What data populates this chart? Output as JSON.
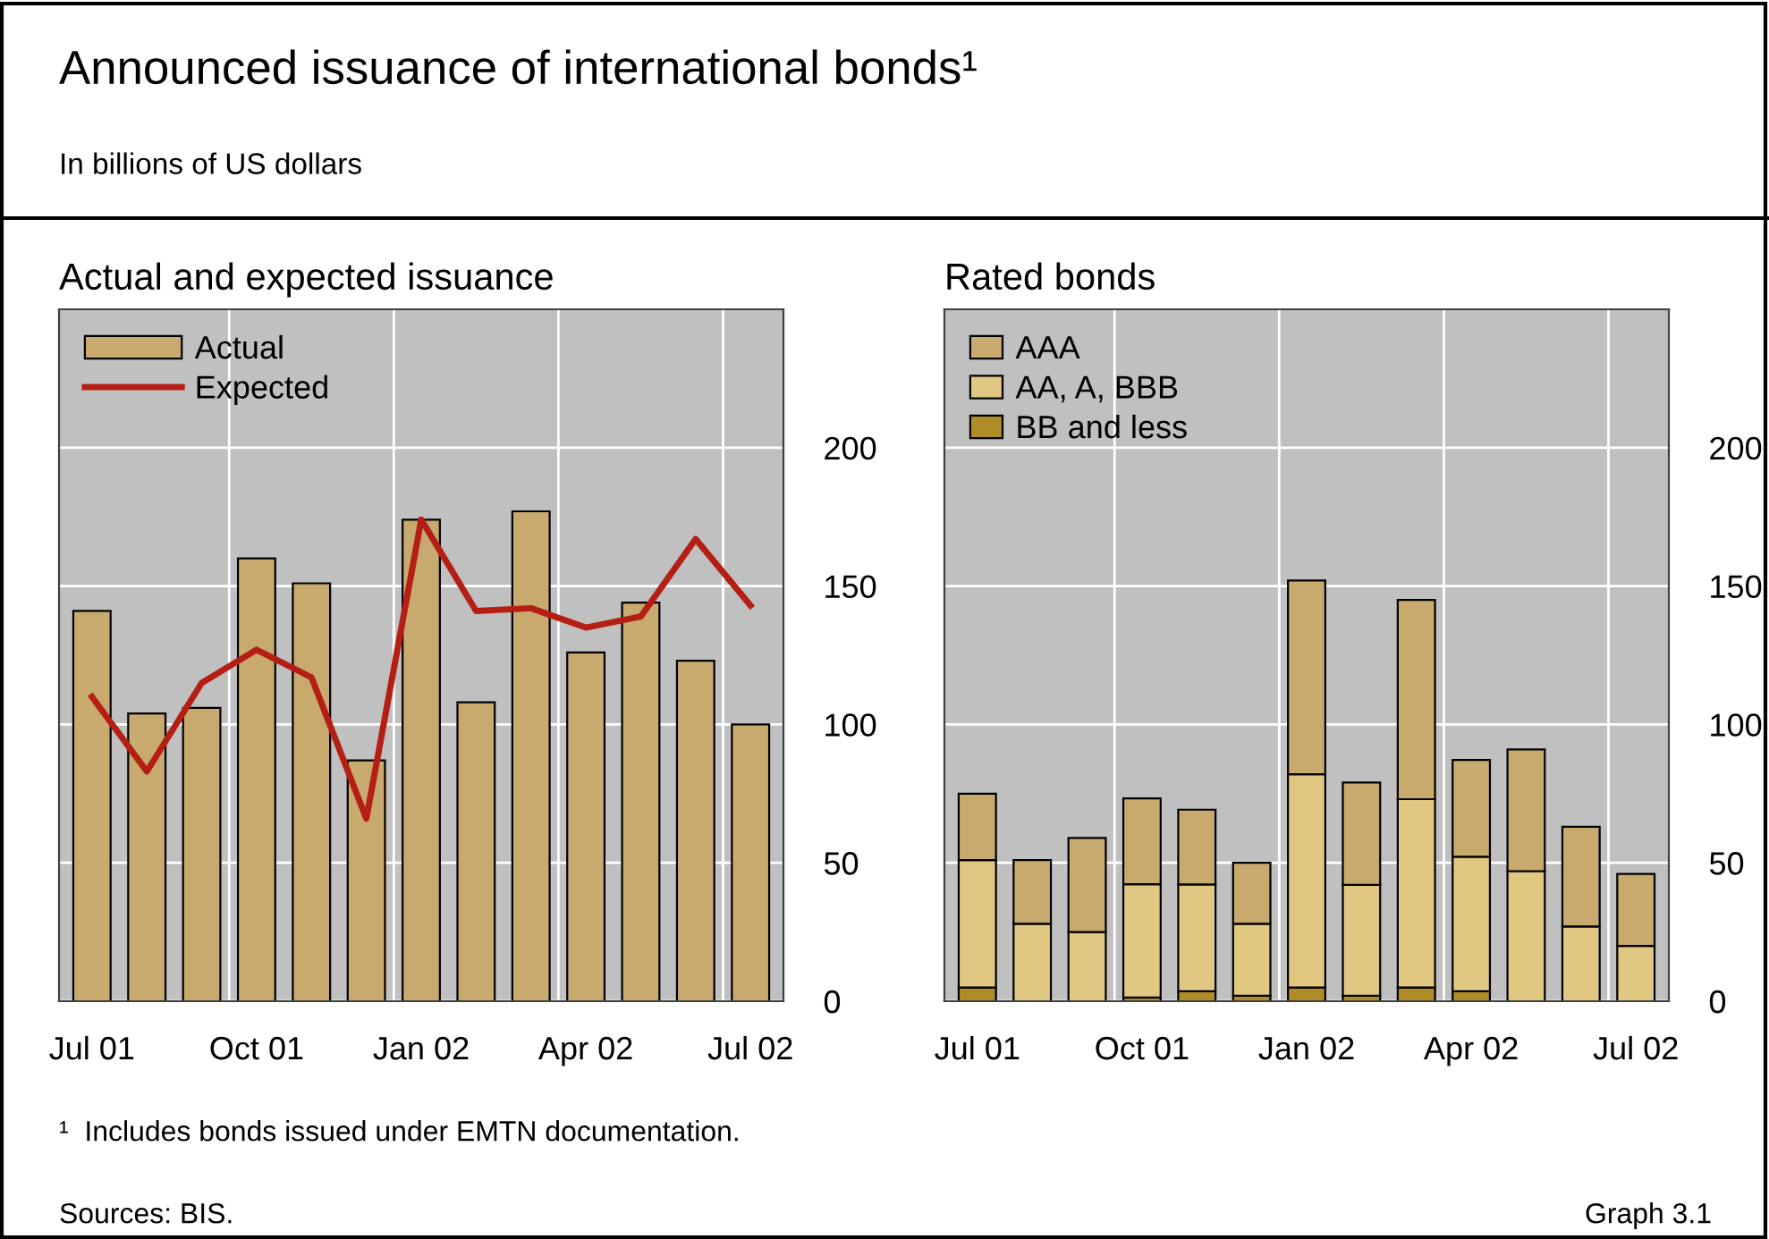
{
  "chart_data": [
    {
      "type": "bar",
      "title": "Actual and expected issuance",
      "annotations": [
        "Announced issuance of international bonds¹",
        "In billions of US dollars",
        "¹  Includes bonds issued under EMTN documentation.",
        "Sources: BIS.",
        "Graph 3.1"
      ],
      "categories": [
        "Jul 01",
        null,
        null,
        "Oct 01",
        null,
        null,
        "Jan 02",
        null,
        null,
        "Apr 02",
        null,
        null,
        "Jul 02"
      ],
      "series": [
        {
          "name": "Actual",
          "type": "bar",
          "color": "#c8aa6e",
          "values": [
            141,
            104,
            106,
            160,
            151,
            87,
            174,
            108,
            177,
            126,
            144,
            123,
            100
          ]
        },
        {
          "name": "Expected",
          "type": "line",
          "color": "#b41e14",
          "values": [
            110,
            83,
            115,
            127,
            117,
            66,
            174,
            141,
            142,
            135,
            139,
            167,
            143
          ]
        }
      ],
      "ylim": [
        0,
        250
      ],
      "yticks": [
        0,
        50,
        100,
        150,
        200
      ],
      "grid": true,
      "legend": "top left"
    },
    {
      "type": "bar",
      "title": "Rated bonds",
      "stacked": true,
      "categories": [
        "Jul 01",
        null,
        null,
        "Oct 01",
        null,
        null,
        "Jan 02",
        null,
        null,
        "Apr 02",
        null,
        null,
        "Jul 02"
      ],
      "series": [
        {
          "name": "BB and less",
          "color": "#b08c28",
          "values": [
            5,
            0,
            0,
            1.3,
            3.6,
            2,
            5,
            2,
            5,
            3.6,
            0,
            0,
            0
          ]
        },
        {
          "name": "AA, A, BBB",
          "color": "#e0c882",
          "values": [
            46,
            28,
            25,
            41,
            38.6,
            26,
            77,
            40,
            68,
            48.6,
            47,
            27,
            20
          ]
        },
        {
          "name": "AAA",
          "color": "#c8aa6e",
          "values": [
            24,
            23,
            34,
            31,
            27,
            22,
            70,
            37,
            72,
            35,
            44,
            36,
            26
          ]
        }
      ],
      "ylim": [
        0,
        250
      ],
      "yticks": [
        0,
        50,
        100,
        150,
        200
      ],
      "grid": true,
      "legend": "top left"
    }
  ]
}
